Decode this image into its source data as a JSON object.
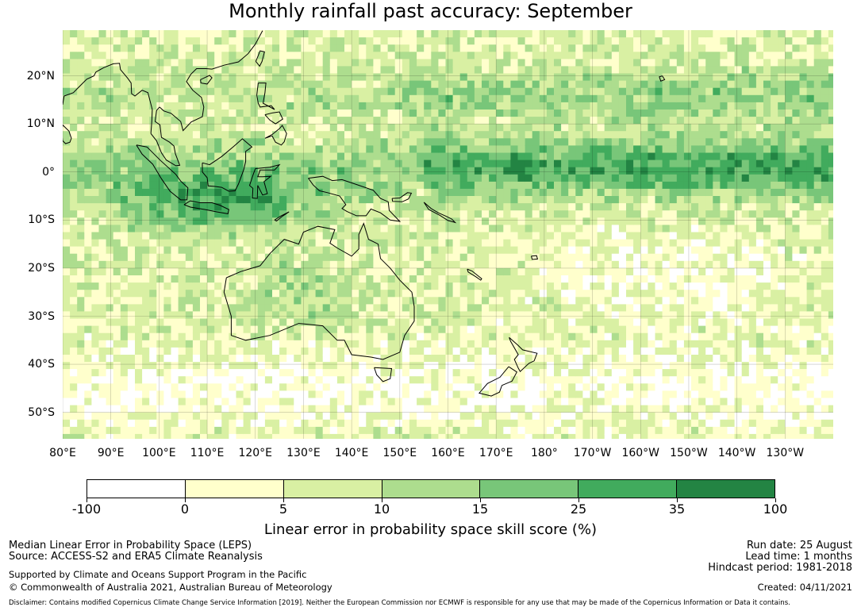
{
  "title": "Monthly rainfall past accuracy: September",
  "map": {
    "lat_labels": [
      "20°N",
      "10°N",
      "0°",
      "10°S",
      "20°S",
      "30°S",
      "40°S",
      "50°S"
    ],
    "lon_labels": [
      "80°E",
      "90°E",
      "100°E",
      "110°E",
      "120°E",
      "130°E",
      "140°E",
      "150°E",
      "160°E",
      "170°E",
      "180°",
      "170°W",
      "160°W",
      "150°W",
      "140°W",
      "130°W"
    ],
    "extent": {
      "lon_min": 80,
      "lon_max": 240,
      "lat_min": -55.5,
      "lat_max": 29.5
    },
    "gridlines": true
  },
  "colorbar": {
    "tick_labels": [
      "-100",
      "0",
      "5",
      "10",
      "15",
      "25",
      "35",
      "100"
    ],
    "colors": [
      "#ffffff",
      "#ffffcc",
      "#d9f0a3",
      "#addd8e",
      "#78c679",
      "#41ab5d",
      "#238443"
    ],
    "label": "Linear error in probability space skill score (%)"
  },
  "footer": {
    "left_line1": "Median Linear Error in Probability Space (LEPS)",
    "left_line2": "Source: ACCESS-S2 and ERA5 Climate Reanalysis",
    "left_line3": "Supported by Climate and Oceans Support Program in the Pacific",
    "left_line4": "© Commonwealth of Australia 2021, Australian Bureau of Meteorology",
    "right_line1": "Run date: 25 August",
    "right_line2": "Lead time: 1 months",
    "right_line3": "Hindcast period: 1981-2018",
    "right_line4": "Created: 04/11/2021",
    "disclaimer": "Disclaimer: Contains modified Copernicus Climate Change Service Information [2019]. Neither the European Commission nor ECMWF is responsible for any use that may be made of the Copernicus Information or Data it contains."
  }
}
